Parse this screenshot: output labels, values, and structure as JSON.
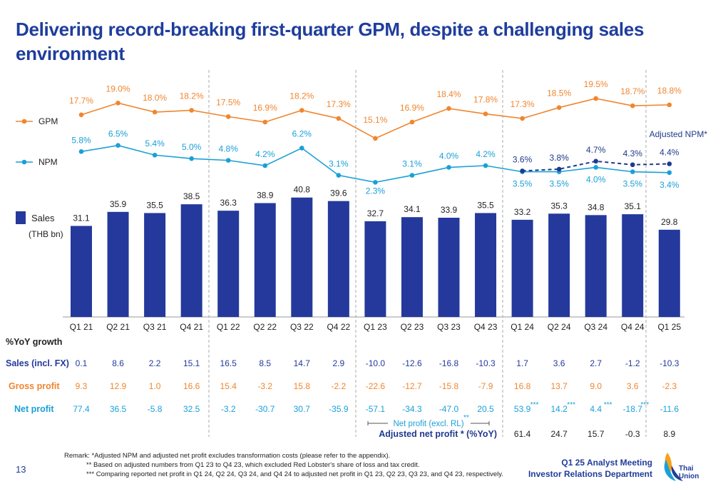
{
  "title": "Delivering record-breaking first-quarter GPM, despite a challenging sales environment",
  "page_number": "13",
  "footer": {
    "line1": "Q1 25 Analyst Meeting",
    "line2": "Investor Relations Department"
  },
  "logo_text": [
    "Thai",
    "Union"
  ],
  "remarks": [
    "Remark:  *Adjusted NPM and adjusted net profit excludes transformation costs (please refer to the appendix).",
    "** Based on adjusted numbers from Q1 23 to Q4 23, which excluded Red Lobster's share of loss and tax credit.",
    "*** Comparing reported net profit in Q1 24, Q2 24, Q3 24, and Q4 24 to adjusted net profit in Q1 23, Q2 23, Q3 23, and Q4 23, respectively."
  ],
  "colors": {
    "title": "#1f3d9c",
    "bar": "#24399b",
    "gpm": "#f0862f",
    "npm": "#1aa0d8",
    "adjusted_npm": "#1f3a8c"
  },
  "chart_data": {
    "type": "bar",
    "categories": [
      "Q1 21",
      "Q2 21",
      "Q3 21",
      "Q4 21",
      "Q1 22",
      "Q2 22",
      "Q3 22",
      "Q4 22",
      "Q1 23",
      "Q2 23",
      "Q3 23",
      "Q4 23",
      "Q1 24",
      "Q2 24",
      "Q3 24",
      "Q4 24",
      "Q1 25"
    ],
    "legend": {
      "sales": "Sales",
      "sales_unit": "(THB bn)",
      "gpm": "GPM",
      "npm": "NPM",
      "adjusted_npm": "Adjusted NPM*"
    },
    "sales": {
      "name": "Sales",
      "values": [
        31.1,
        35.9,
        35.5,
        38.5,
        36.3,
        38.9,
        40.8,
        39.6,
        32.7,
        34.1,
        33.9,
        35.5,
        33.2,
        35.3,
        34.8,
        35.1,
        29.8
      ],
      "labels": [
        "31.1",
        "35.9",
        "35.5",
        "38.5",
        "36.3",
        "38.9",
        "40.8",
        "39.6",
        "32.7",
        "34.1",
        "33.9",
        "35.5",
        "33.2",
        "35.3",
        "34.8",
        "35.1",
        "29.8"
      ]
    },
    "gpm": {
      "name": "GPM",
      "values": [
        17.7,
        19.0,
        18.0,
        18.2,
        17.5,
        16.9,
        18.2,
        17.3,
        15.1,
        16.9,
        18.4,
        17.8,
        17.3,
        18.5,
        19.5,
        18.7,
        18.8
      ],
      "labels": [
        "17.7%",
        "19.0%",
        "18.0%",
        "18.2%",
        "17.5%",
        "16.9%",
        "18.2%",
        "17.3%",
        "15.1%",
        "16.9%",
        "18.4%",
        "17.8%",
        "17.3%",
        "18.5%",
        "19.5%",
        "18.7%",
        "18.8%"
      ]
    },
    "npm": {
      "name": "NPM",
      "values": [
        5.8,
        6.5,
        5.4,
        5.0,
        4.8,
        4.2,
        6.2,
        3.1,
        2.3,
        3.1,
        4.0,
        4.2,
        3.5,
        3.5,
        4.0,
        3.5,
        3.4
      ],
      "labels": [
        "5.8%",
        "6.5%",
        "5.4%",
        "5.0%",
        "4.8%",
        "4.2%",
        "6.2%",
        "3.1%",
        "2.3%",
        "3.1%",
        "4.0%",
        "4.2%",
        "3.5%",
        "3.5%",
        "4.0%",
        "3.5%",
        "3.4%"
      ]
    },
    "adjusted_npm": {
      "name": "Adjusted NPM*",
      "categories": [
        "Q1 24",
        "Q2 24",
        "Q3 24",
        "Q4 24",
        "Q1 25"
      ],
      "values": [
        3.6,
        3.8,
        4.7,
        4.3,
        4.4
      ],
      "labels": [
        "3.6%",
        "3.8%",
        "4.7%",
        "4.3%",
        "4.4%"
      ]
    },
    "yoy": {
      "header": "%YoY growth",
      "rows": [
        {
          "label": "Sales (incl. FX)",
          "values": [
            "0.1",
            "8.6",
            "2.2",
            "15.1",
            "16.5",
            "8.5",
            "14.7",
            "2.9",
            "-10.0",
            "-12.6",
            "-16.8",
            "-10.3",
            "1.7",
            "3.6",
            "2.7",
            "-1.2",
            "-10.3"
          ]
        },
        {
          "label": "Gross profit",
          "values": [
            "9.3",
            "12.9",
            "1.0",
            "16.6",
            "15.4",
            "-3.2",
            "15.8",
            "-2.2",
            "-22.6",
            "-12.7",
            "-15.8",
            "-7.9",
            "16.8",
            "13.7",
            "9.0",
            "3.6",
            "-2.3"
          ]
        },
        {
          "label": "Net profit",
          "values": [
            "77.4",
            "36.5",
            "-5.8",
            "32.5",
            "-3.2",
            "-30.7",
            "30.7",
            "-35.9",
            "-57.1",
            "-34.3",
            "-47.0",
            "20.5",
            "53.9",
            "14.2",
            "4.4",
            "-18.7",
            "-11.6"
          ]
        }
      ],
      "net_profit_marks": [
        "***",
        "***",
        "***",
        "***"
      ],
      "net_profit_excl_rl": "Net profit (excl. RL)",
      "net_profit_excl_rl_mark": "**",
      "adjusted_label": "Adjusted net profit * (%YoY)",
      "adjusted_values": [
        "61.4",
        "24.7",
        "15.7",
        "-0.3",
        "8.9"
      ]
    }
  }
}
